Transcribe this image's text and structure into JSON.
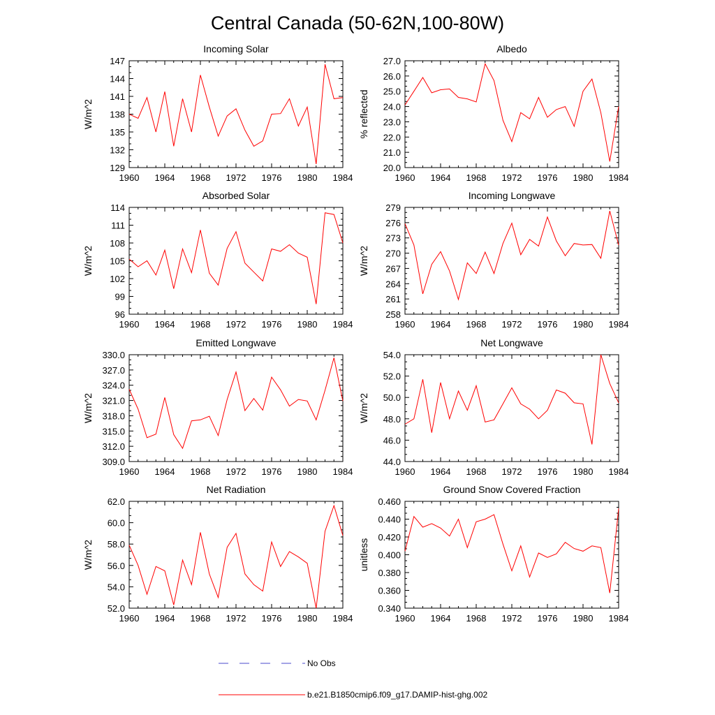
{
  "figure": {
    "title": "Central Canada (50-62N,100-80W)",
    "legend": [
      {
        "label": "No Obs",
        "color": "#4a4acc",
        "style": "dashed"
      },
      {
        "label": "b.e21.B1850cmip6.f09_g17.DAMIP-hist-ghg.002",
        "color": "#ff0000",
        "style": "solid"
      }
    ]
  },
  "chart_data": [
    {
      "type": "line",
      "title": "Incoming Solar",
      "ylabel": "W/m^2",
      "xlim": [
        1960,
        1984
      ],
      "ylim": [
        129,
        147
      ],
      "xticks": [
        1960,
        1964,
        1968,
        1972,
        1976,
        1980,
        1984
      ],
      "yticks": [
        "129",
        "132",
        "135",
        "138",
        "141",
        "144",
        "147"
      ],
      "x": [
        1960,
        1961,
        1962,
        1963,
        1964,
        1965,
        1966,
        1967,
        1968,
        1969,
        1970,
        1971,
        1972,
        1973,
        1974,
        1975,
        1976,
        1977,
        1978,
        1979,
        1980,
        1981,
        1982,
        1983,
        1984
      ],
      "series": [
        {
          "name": "b.e21.B1850cmip6.f09_g17.DAMIP-hist-ghg.002",
          "color": "#ff0000",
          "values": [
            138.0,
            137.3,
            140.8,
            135.0,
            141.8,
            132.6,
            140.6,
            135.0,
            144.6,
            139.2,
            134.3,
            137.7,
            138.9,
            135.3,
            132.6,
            133.5,
            138.0,
            138.1,
            140.6,
            136.0,
            139.2,
            129.6,
            146.4,
            140.6,
            140.8
          ]
        }
      ]
    },
    {
      "type": "line",
      "title": "Albedo",
      "ylabel": "% reflected",
      "xlim": [
        1960,
        1984
      ],
      "ylim": [
        20.0,
        27.0
      ],
      "xticks": [
        1960,
        1964,
        1968,
        1972,
        1976,
        1980,
        1984
      ],
      "yticks": [
        "20.0",
        "21.0",
        "22.0",
        "23.0",
        "24.0",
        "25.0",
        "26.0",
        "27.0"
      ],
      "x": [
        1960,
        1961,
        1962,
        1963,
        1964,
        1965,
        1966,
        1967,
        1968,
        1969,
        1970,
        1971,
        1972,
        1973,
        1974,
        1975,
        1976,
        1977,
        1978,
        1979,
        1980,
        1981,
        1982,
        1983,
        1984
      ],
      "series": [
        {
          "name": "b.e21.B1850cmip6.f09_g17.DAMIP-hist-ghg.002",
          "color": "#ff0000",
          "values": [
            24.1,
            25.0,
            25.9,
            24.9,
            25.1,
            25.15,
            24.6,
            24.5,
            24.3,
            26.8,
            25.7,
            23.1,
            21.7,
            23.6,
            23.2,
            24.6,
            23.3,
            23.8,
            24.0,
            22.7,
            25.0,
            25.8,
            23.6,
            20.4,
            24.0
          ]
        }
      ]
    },
    {
      "type": "line",
      "title": "Absorbed Solar",
      "ylabel": "W/m^2",
      "xlim": [
        1960,
        1984
      ],
      "ylim": [
        96,
        114
      ],
      "xticks": [
        1960,
        1964,
        1968,
        1972,
        1976,
        1980,
        1984
      ],
      "yticks": [
        "96",
        "99",
        "102",
        "105",
        "108",
        "111",
        "114"
      ],
      "x": [
        1960,
        1961,
        1962,
        1963,
        1964,
        1965,
        1966,
        1967,
        1968,
        1969,
        1970,
        1971,
        1972,
        1973,
        1974,
        1975,
        1976,
        1977,
        1978,
        1979,
        1980,
        1981,
        1982,
        1983,
        1984
      ],
      "series": [
        {
          "name": "b.e21.B1850cmip6.f09_g17.DAMIP-hist-ghg.002",
          "color": "#ff0000",
          "values": [
            105.3,
            104.0,
            105.0,
            102.6,
            106.8,
            100.3,
            107.0,
            103.0,
            110.2,
            102.9,
            100.9,
            107.1,
            109.9,
            104.6,
            103.1,
            101.6,
            107.0,
            106.6,
            107.7,
            106.3,
            105.6,
            97.7,
            113.1,
            112.8,
            108.0
          ]
        }
      ]
    },
    {
      "type": "line",
      "title": "Incoming Longwave",
      "ylabel": "W/m^2",
      "xlim": [
        1960,
        1984
      ],
      "ylim": [
        258,
        279
      ],
      "xticks": [
        1960,
        1964,
        1968,
        1972,
        1976,
        1980,
        1984
      ],
      "yticks": [
        "258",
        "261",
        "264",
        "267",
        "270",
        "273",
        "276",
        "279"
      ],
      "x": [
        1960,
        1961,
        1962,
        1963,
        1964,
        1965,
        1966,
        1967,
        1968,
        1969,
        1970,
        1971,
        1972,
        1973,
        1974,
        1975,
        1976,
        1977,
        1978,
        1979,
        1980,
        1981,
        1982,
        1983,
        1984
      ],
      "series": [
        {
          "name": "b.e21.B1850cmip6.f09_g17.DAMIP-hist-ghg.002",
          "color": "#ff0000",
          "values": [
            275.8,
            271.6,
            262.0,
            267.8,
            270.3,
            266.5,
            260.9,
            268.1,
            266.0,
            270.2,
            266.0,
            271.9,
            275.9,
            269.7,
            272.7,
            271.4,
            277.1,
            272.4,
            269.5,
            271.9,
            271.6,
            271.7,
            269.0,
            278.3,
            271.6
          ]
        }
      ]
    },
    {
      "type": "line",
      "title": "Emitted Longwave",
      "ylabel": "W/m^2",
      "xlim": [
        1960,
        1984
      ],
      "ylim": [
        309.0,
        330.0
      ],
      "xticks": [
        1960,
        1964,
        1968,
        1972,
        1976,
        1980,
        1984
      ],
      "yticks": [
        "309.0",
        "312.0",
        "315.0",
        "318.0",
        "321.0",
        "324.0",
        "327.0",
        "330.0"
      ],
      "x": [
        1960,
        1961,
        1962,
        1963,
        1964,
        1965,
        1966,
        1967,
        1968,
        1969,
        1970,
        1971,
        1972,
        1973,
        1974,
        1975,
        1976,
        1977,
        1978,
        1979,
        1980,
        1981,
        1982,
        1983,
        1984
      ],
      "series": [
        {
          "name": "b.e21.B1850cmip6.f09_g17.DAMIP-hist-ghg.002",
          "color": "#ff0000",
          "values": [
            323.2,
            319.3,
            313.7,
            314.4,
            321.6,
            314.3,
            311.6,
            317.0,
            317.2,
            317.9,
            314.1,
            321.2,
            326.6,
            319.0,
            321.4,
            319.1,
            325.6,
            323.1,
            319.9,
            321.2,
            320.9,
            317.2,
            323.0,
            329.4,
            320.9
          ]
        }
      ]
    },
    {
      "type": "line",
      "title": "Net Longwave",
      "ylabel": "W/m^2",
      "xlim": [
        1960,
        1984
      ],
      "ylim": [
        44.0,
        54.0
      ],
      "xticks": [
        1960,
        1964,
        1968,
        1972,
        1976,
        1980,
        1984
      ],
      "yticks": [
        "44.0",
        "46.0",
        "48.0",
        "50.0",
        "52.0",
        "54.0"
      ],
      "x": [
        1960,
        1961,
        1962,
        1963,
        1964,
        1965,
        1966,
        1967,
        1968,
        1969,
        1970,
        1971,
        1972,
        1973,
        1974,
        1975,
        1976,
        1977,
        1978,
        1979,
        1980,
        1981,
        1982,
        1983,
        1984
      ],
      "series": [
        {
          "name": "b.e21.B1850cmip6.f09_g17.DAMIP-hist-ghg.002",
          "color": "#ff0000",
          "values": [
            47.5,
            48.0,
            51.7,
            46.7,
            51.4,
            48.0,
            50.6,
            48.8,
            51.1,
            47.7,
            47.9,
            49.4,
            50.9,
            49.4,
            48.9,
            48.0,
            48.8,
            50.7,
            50.4,
            49.5,
            49.4,
            45.6,
            54.0,
            51.3,
            49.5
          ]
        }
      ]
    },
    {
      "type": "line",
      "title": "Net Radiation",
      "ylabel": "W/m^2",
      "xlim": [
        1960,
        1984
      ],
      "ylim": [
        52.0,
        62.0
      ],
      "xticks": [
        1960,
        1964,
        1968,
        1972,
        1976,
        1980,
        1984
      ],
      "yticks": [
        "52.0",
        "54.0",
        "56.0",
        "58.0",
        "60.0",
        "62.0"
      ],
      "x": [
        1960,
        1961,
        1962,
        1963,
        1964,
        1965,
        1966,
        1967,
        1968,
        1969,
        1970,
        1971,
        1972,
        1973,
        1974,
        1975,
        1976,
        1977,
        1978,
        1979,
        1980,
        1981,
        1982,
        1983,
        1984
      ],
      "series": [
        {
          "name": "b.e21.B1850cmip6.f09_g17.DAMIP-hist-ghg.002",
          "color": "#ff0000",
          "values": [
            57.9,
            56.0,
            53.3,
            55.9,
            55.5,
            52.3,
            56.5,
            54.2,
            59.1,
            55.2,
            53.0,
            57.7,
            59.0,
            55.2,
            54.2,
            53.6,
            58.2,
            55.9,
            57.3,
            56.8,
            56.2,
            52.0,
            59.2,
            61.6,
            58.8
          ]
        }
      ]
    },
    {
      "type": "line",
      "title": "Ground Snow Covered Fraction",
      "ylabel": "unitless",
      "xlim": [
        1960,
        1984
      ],
      "ylim": [
        0.34,
        0.46
      ],
      "xticks": [
        1960,
        1964,
        1968,
        1972,
        1976,
        1980,
        1984
      ],
      "yticks": [
        "0.340",
        "0.360",
        "0.380",
        "0.400",
        "0.420",
        "0.440",
        "0.460"
      ],
      "x": [
        1960,
        1961,
        1962,
        1963,
        1964,
        1965,
        1966,
        1967,
        1968,
        1969,
        1970,
        1971,
        1972,
        1973,
        1974,
        1975,
        1976,
        1977,
        1978,
        1979,
        1980,
        1981,
        1982,
        1983,
        1984
      ],
      "series": [
        {
          "name": "b.e21.B1850cmip6.f09_g17.DAMIP-hist-ghg.002",
          "color": "#ff0000",
          "values": [
            0.404,
            0.443,
            0.431,
            0.435,
            0.43,
            0.421,
            0.44,
            0.408,
            0.437,
            0.44,
            0.445,
            0.412,
            0.382,
            0.41,
            0.375,
            0.402,
            0.397,
            0.401,
            0.414,
            0.407,
            0.404,
            0.41,
            0.408,
            0.357,
            0.452
          ]
        }
      ]
    }
  ]
}
